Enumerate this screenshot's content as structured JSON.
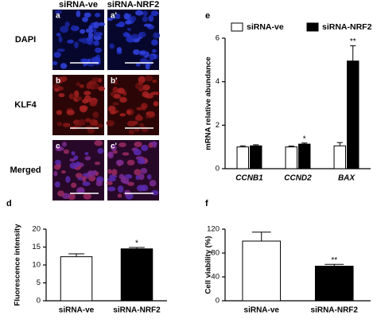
{
  "microscopy": {
    "columns": [
      "siRNA-ve",
      "siRNA-NRF2"
    ],
    "rows": [
      {
        "label": "DAPI",
        "panels": [
          "a",
          "a'"
        ]
      },
      {
        "label": "KLF4",
        "panels": [
          "b",
          "b'"
        ]
      },
      {
        "label": "Merged",
        "panels": [
          "c",
          "c'"
        ]
      }
    ]
  },
  "chart_data": [
    {
      "type": "bar",
      "panel_label": "d",
      "y_label": "Fluorescence intensity",
      "categories": [
        "siRNA-ve",
        "siRNA-NRF2"
      ],
      "values": [
        12.3,
        14.5
      ],
      "errors": [
        0.8,
        0.4
      ],
      "colors": [
        "#ffffff",
        "#000000"
      ],
      "marks": [
        null,
        "*"
      ],
      "ylim": [
        0,
        20
      ],
      "yticks": [
        0,
        5,
        10,
        15,
        20
      ]
    },
    {
      "type": "bar",
      "panel_label": "e",
      "y_label": "mRNA relative abundance",
      "categories": [
        "CCNB1",
        "CCND2",
        "BAX"
      ],
      "series": [
        {
          "name": "siRNA-ve",
          "color": "#ffffff",
          "values": [
            1.0,
            1.0,
            1.05
          ],
          "errors": [
            0.05,
            0.04,
            0.15
          ]
        },
        {
          "name": "siRNA-NRF2",
          "color": "#000000",
          "values": [
            1.05,
            1.13,
            4.95
          ],
          "errors": [
            0.05,
            0.05,
            0.7
          ],
          "marks": [
            null,
            "*",
            "**"
          ]
        }
      ],
      "ylim": [
        0,
        6
      ],
      "yticks": [
        0,
        2,
        4,
        6
      ],
      "legend": "top"
    },
    {
      "type": "bar",
      "panel_label": "f",
      "y_label": "Cell viability (%)",
      "categories": [
        "siRNA-ve",
        "siRNA-NRF2"
      ],
      "values": [
        100,
        58
      ],
      "errors": [
        15,
        3
      ],
      "colors": [
        "#ffffff",
        "#000000"
      ],
      "marks": [
        null,
        "**"
      ],
      "ylim": [
        0,
        120
      ],
      "yticks": [
        0,
        40,
        80,
        120
      ]
    }
  ]
}
